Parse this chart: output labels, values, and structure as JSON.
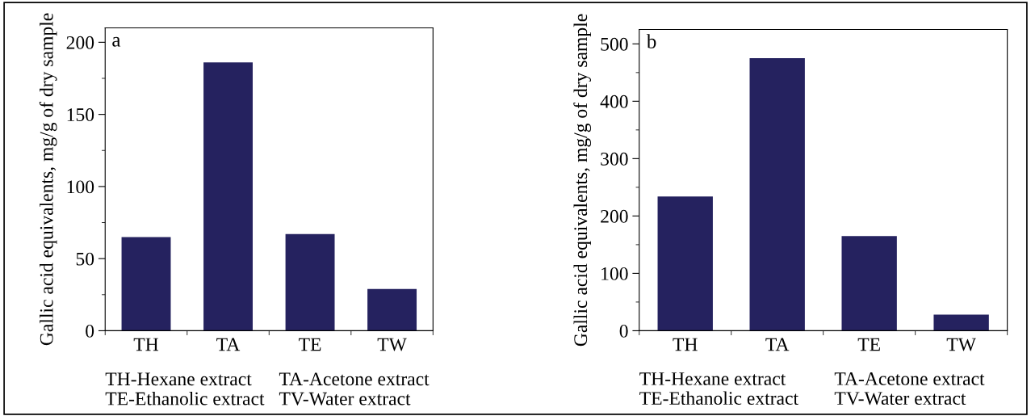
{
  "chart_data": [
    {
      "type": "bar",
      "categories": [
        "TH",
        "TA",
        "TE",
        "TW"
      ],
      "values": [
        65,
        186,
        67,
        29
      ],
      "color": "#25225f",
      "ylabel": "Gallic acid equivalents, mg/g of dry sample",
      "ylim": [
        0,
        210
      ],
      "yticks": [
        0,
        {
          "value": 25,
          "label": null
        },
        50,
        {
          "value": 75,
          "label": null
        },
        100,
        {
          "value": 125,
          "label": null
        },
        150,
        {
          "value": 175,
          "label": null
        },
        200
      ],
      "annotations": [
        "a",
        "TH-Hexane extract",
        "TA-Acetone extract",
        "TE-Ethanolic extract",
        "TV-Water extract"
      ],
      "grid": false,
      "legend": false
    },
    {
      "type": "bar",
      "categories": [
        "TH",
        "TA",
        "TE",
        "TW"
      ],
      "values": [
        234,
        475,
        165,
        28
      ],
      "color": "#25225f",
      "ylabel": "Gallic acid equivalents, mg/g of dry sample",
      "ylim": [
        0,
        525
      ],
      "yticks": [
        0,
        {
          "value": 50,
          "label": null
        },
        100,
        {
          "value": 150,
          "label": null
        },
        200,
        {
          "value": 250,
          "label": null
        },
        300,
        {
          "value": 350,
          "label": null
        },
        400,
        {
          "value": 450,
          "label": null
        },
        500
      ],
      "annotations": [
        "b",
        "TH-Hexane extract",
        "TA-Acetone extract",
        "TE-Ethanolic extract",
        "TV-Water extract"
      ],
      "grid": false,
      "legend": false
    }
  ]
}
